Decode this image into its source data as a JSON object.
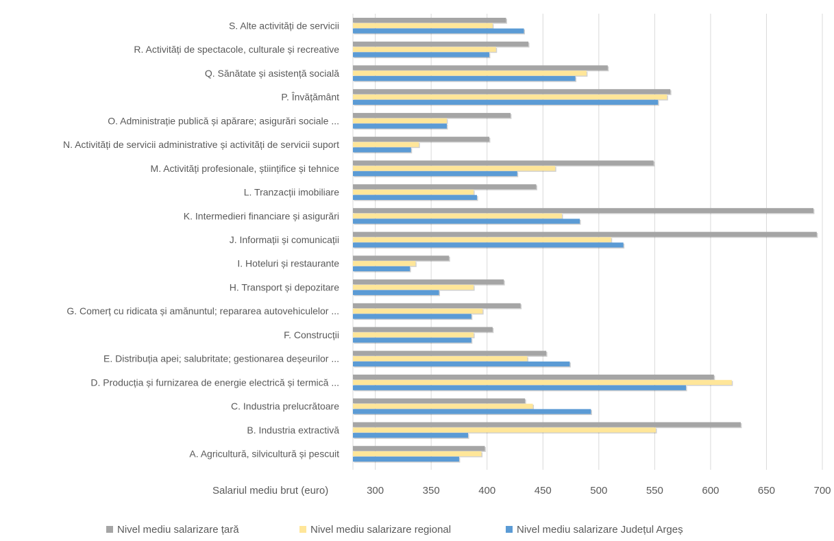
{
  "chart_data": {
    "type": "bar",
    "orientation": "horizontal",
    "xlabel": "Salariul mediu brut (euro)",
    "xlim": [
      300,
      700
    ],
    "xticks": [
      300,
      350,
      400,
      450,
      500,
      550,
      600,
      650,
      700
    ],
    "grid": true,
    "legend_position": "bottom",
    "categories": [
      "S. Alte activități de servicii",
      "R. Activități de spectacole, culturale și recreative",
      "Q. Sănătate și asistență socială",
      "P. Învățământ",
      "O. Administrație publică și apărare; asigurări sociale ...",
      "N. Activități de servicii administrative și activități de servicii suport",
      "M. Activități profesionale, științifice și tehnice",
      "L. Tranzacții imobiliare",
      "K. Intermedieri financiare și asigurări",
      "J. Informații și comunicații",
      "I. Hoteluri și restaurante",
      "H. Transport și depozitare",
      "G. Comerț cu ridicata și amănuntul; repararea autovehiculelor ...",
      "F. Construcții",
      "E. Distribuția apei; salubritate; gestionarea deșeurilor ...",
      "D. Producția și furnizarea de energie electrică și termică ...",
      "C. Industria prelucrătoare",
      "B. Industria extractivă",
      "A. Agricultură, silvicultură și pescuit"
    ],
    "series": [
      {
        "name": "Nivel mediu salarizare țară",
        "color": "#a5a5a5",
        "values": [
          417,
          437,
          508,
          564,
          421,
          402,
          549,
          444,
          692,
          695,
          366,
          415,
          430,
          405,
          453,
          603,
          434,
          627,
          398
        ]
      },
      {
        "name": "Nivel mediu salarizare regional",
        "color": "#ffe699",
        "values": [
          405,
          408,
          489,
          561,
          364,
          339,
          461,
          388,
          467,
          511,
          336,
          388,
          396,
          388,
          436,
          619,
          441,
          551,
          395
        ]
      },
      {
        "name": "Nivel mediu salarizare Județul Argeș",
        "color": "#5b9bd5",
        "values": [
          433,
          402,
          479,
          553,
          364,
          332,
          427,
          391,
          483,
          522,
          331,
          357,
          386,
          386,
          474,
          578,
          493,
          383,
          375
        ]
      }
    ]
  }
}
